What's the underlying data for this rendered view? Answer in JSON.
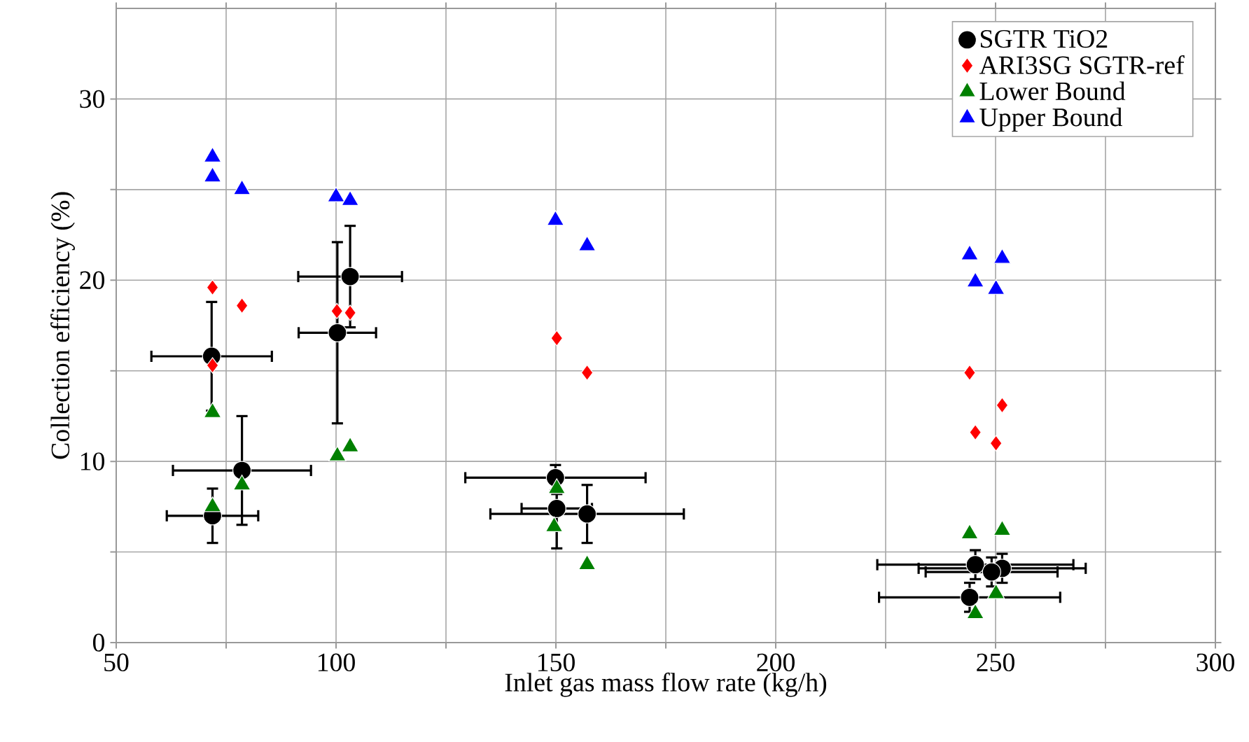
{
  "chart_data": {
    "type": "scatter",
    "xlabel": "Inlet gas mass flow rate (kg/h)",
    "ylabel": "Collection efficiency (%)",
    "xlim": [
      50,
      300
    ],
    "ylim": [
      0,
      35
    ],
    "xticks": [
      50,
      {
        "value": 75,
        "label": null
      },
      100,
      {
        "value": 125,
        "label": null
      },
      150,
      {
        "value": 175,
        "label": null
      },
      200,
      {
        "value": 225,
        "label": null
      },
      250,
      {
        "value": 275,
        "label": null
      },
      300
    ],
    "yticks": [
      0,
      {
        "value": 5,
        "label": null
      },
      10,
      {
        "value": 15,
        "label": null
      },
      20,
      {
        "value": 25,
        "label": null
      },
      30
    ],
    "grid": true,
    "legend": "top right",
    "series": [
      {
        "name": "SGTR TiO2",
        "color": "#000000",
        "marker": "circle",
        "x": [
          71.7,
          78.6,
          71.9,
          100.3,
          103.2,
          149.9,
          150.2,
          157.1,
          245.4,
          251.5,
          244.1,
          249.1
        ],
        "values": [
          15.8,
          9.5,
          7.0,
          17.1,
          20.2,
          9.1,
          7.4,
          7.1,
          4.3,
          4.1,
          2.5,
          3.9
        ],
        "xerrors": [
          13.7,
          15.7,
          10.4,
          8.8,
          11.8,
          20.5,
          8,
          22,
          22.3,
          19,
          20.6,
          15
        ],
        "errors": [
          3,
          3,
          1.5,
          5,
          2.8,
          0.7,
          [
            5.2,
            8.2
          ],
          1.6,
          0.8,
          0.8,
          0.8,
          0.8
        ]
      },
      {
        "name": "ARI3SG SGTR-ref",
        "color": "#ff0000",
        "marker": "diamond",
        "x": [
          71.9,
          78.6,
          71.9,
          100.2,
          103.2,
          150.2,
          157.1,
          244.1,
          251.5,
          245.4,
          250.1
        ],
        "values": [
          19.6,
          18.6,
          15.3,
          18.3,
          18.2,
          16.8,
          14.9,
          14.9,
          13.1,
          11.6,
          11.0
        ]
      },
      {
        "name": "Lower Bound",
        "color": "#008000",
        "marker": "triangle",
        "x": [
          71.9,
          78.6,
          71.9,
          100.3,
          103.2,
          150.2,
          149.6,
          157.1,
          244.1,
          251.5,
          250.1,
          245.4
        ],
        "values": [
          12.7,
          8.7,
          7.5,
          10.3,
          10.8,
          8.5,
          6.4,
          4.3,
          6.0,
          6.2,
          2.7,
          1.6
        ]
      },
      {
        "name": "Upper Bound",
        "color": "#0000ff",
        "marker": "triangle",
        "x": [
          71.9,
          71.9,
          78.6,
          100.0,
          103.2,
          149.9,
          157.1,
          244.1,
          251.5,
          245.4,
          250.1
        ],
        "values": [
          26.8,
          25.7,
          25.0,
          24.6,
          24.4,
          23.3,
          21.9,
          21.4,
          21.2,
          19.9,
          19.5
        ]
      }
    ]
  }
}
